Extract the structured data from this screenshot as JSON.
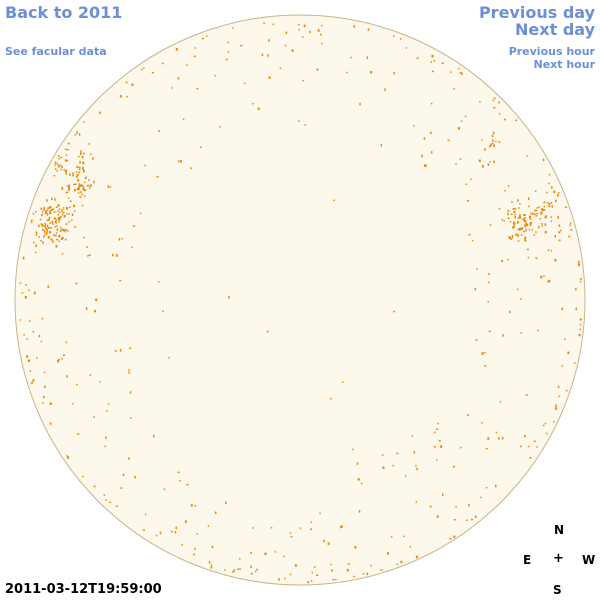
{
  "nav": {
    "back_label": "Back to 2011",
    "facular_label": "See facular data",
    "prev_day_label": "Previous day",
    "next_day_label": "Next day",
    "prev_hour_label": "Previous hour",
    "next_hour_label": "Next hour"
  },
  "timestamp": "2011-03-12T19:59:00",
  "compass": {
    "north": "N",
    "east": "E",
    "center": "+",
    "west": "W",
    "south": "S"
  },
  "colors": {
    "link": "#6c8fd8",
    "disk_fill": "#fdf8ec",
    "disk_stroke": "#c9b38a",
    "facula": "#e8890c"
  },
  "disk": {
    "features": "Scattered orange facular points along the limb, with dense clusters on the east (left) and west (right) limbs near the northern hemisphere"
  }
}
